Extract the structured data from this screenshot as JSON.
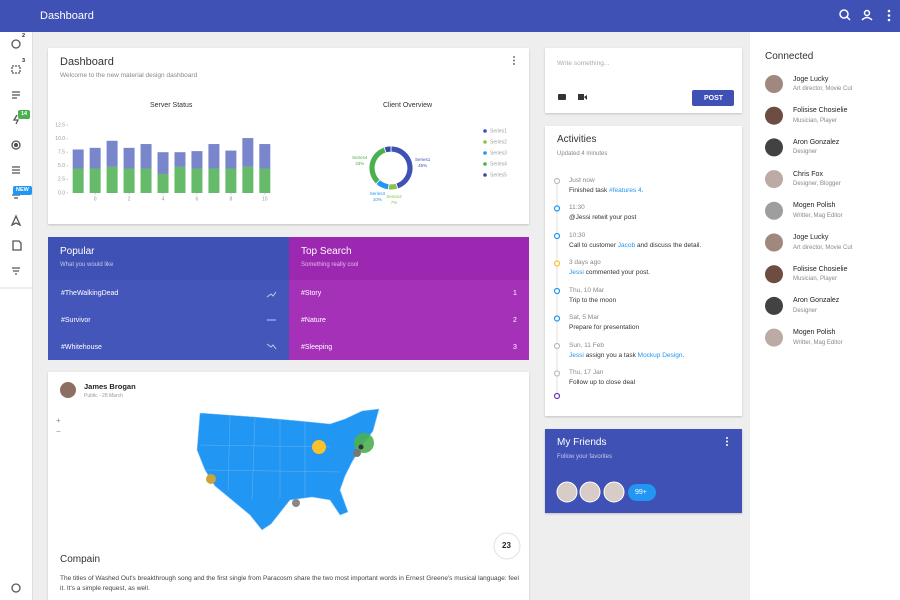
{
  "topbar": {
    "title": "Dashboard"
  },
  "sidebar": {
    "badges": [
      "2",
      "3",
      "14",
      "NEW"
    ]
  },
  "dashboard_card": {
    "title": "Dashboard",
    "subtitle": "Welcome to the new material design dashboard",
    "server_status": {
      "type": "bar",
      "title": "Server Status",
      "x": [
        -1,
        0,
        1,
        2,
        3,
        4,
        5,
        6,
        7,
        8,
        9,
        10
      ],
      "series": [
        {
          "color": "#66bb6a",
          "values": [
            4.5,
            4.5,
            4.8,
            4.5,
            4.5,
            3.5,
            4.8,
            4.5,
            4.5,
            4.5,
            4.8,
            4.5
          ]
        },
        {
          "color": "#7986cb",
          "values": [
            3.5,
            3.8,
            4.8,
            3.8,
            4.5,
            4.0,
            2.7,
            3.2,
            4.5,
            3.3,
            5.3,
            4.5
          ]
        }
      ],
      "stacked": true,
      "xlim": [
        -1.6,
        10.6
      ],
      "ylim": [
        0,
        12.5
      ],
      "xticks": [
        0,
        2,
        4,
        6,
        8,
        10
      ],
      "yticks": [
        {
          "value": 0,
          "label": "0.0"
        },
        2.5,
        {
          "value": 5,
          "label": "5.0"
        },
        7.5,
        {
          "value": 10,
          "label": "10.0"
        },
        12.5
      ]
    },
    "client_overview": {
      "type": "donut",
      "title": "Client Overview",
      "categories": [
        "Series1",
        "Series2",
        "Series3",
        "Series4",
        "Series5"
      ],
      "values": [
        45,
        7,
        10,
        33,
        5
      ],
      "value_labels": [
        "45%",
        "7%",
        "10%",
        "33%",
        null
      ],
      "colors": [
        "#3f51b5",
        "#8bc34a",
        "#2196f3",
        "#4caf50",
        "#3949ab"
      ]
    }
  },
  "popular": {
    "title": "Popular",
    "subtitle": "What you would like",
    "rows": [
      {
        "tag": "#TheWalkingDead",
        "trend": "up"
      },
      {
        "tag": "#Survivor",
        "trend": "flat"
      },
      {
        "tag": "#Whitehouse",
        "trend": "down"
      }
    ]
  },
  "top_search": {
    "title": "Top Search",
    "subtitle": "Something really cool",
    "rows": [
      {
        "tag": "#Story",
        "rank": "1"
      },
      {
        "tag": "#Nature",
        "rank": "2"
      },
      {
        "tag": "#Sleeping",
        "rank": "3"
      }
    ]
  },
  "map_card": {
    "author": "James Brogan",
    "meta": "Public - 28 March",
    "zoom": [
      "+",
      "−"
    ],
    "badge": "23",
    "title": "Compain",
    "text": "The titles of Washed Out's breakthrough song and the first single from Paracosm share the two most important words in Ernest Greene's musical language: feel it. It's a simple request, as well."
  },
  "post_card": {
    "placeholder": "Write something...",
    "button": "POST"
  },
  "activities": {
    "title": "Activities",
    "subtitle": "Updated 4 minutes",
    "items": [
      {
        "time": "Just now",
        "dot": "#bdbdbd",
        "parts": [
          {
            "text": "Finished task "
          },
          {
            "text": "#features 4",
            "link": true
          },
          {
            "text": "."
          }
        ]
      },
      {
        "time": "11:30",
        "dot": "#2196f3",
        "parts": [
          {
            "text": "@Jessi retwit your post"
          }
        ]
      },
      {
        "time": "10:30",
        "dot": "#2196f3",
        "parts": [
          {
            "text": "Call to customer "
          },
          {
            "text": "Jacob",
            "link": true
          },
          {
            "text": " and discuss the detail."
          }
        ]
      },
      {
        "time": "3 days ago",
        "dot": "#fbc02d",
        "parts": [
          {
            "text": "Jessi",
            "link": true
          },
          {
            "text": " commented your post."
          }
        ]
      },
      {
        "time": "Thu, 10 Mar",
        "dot": "#2196f3",
        "parts": [
          {
            "text": "Trip to the moon"
          }
        ]
      },
      {
        "time": "Sat, 5 Mar",
        "dot": "#2196f3",
        "parts": [
          {
            "text": "Prepare for presentation"
          }
        ]
      },
      {
        "time": "Sun, 11 Feb",
        "dot": "#bdbdbd",
        "parts": [
          {
            "text": "Jessi",
            "link": true
          },
          {
            "text": " assign you a task "
          },
          {
            "text": "Mockup Design",
            "link": true
          },
          {
            "text": "."
          }
        ]
      },
      {
        "time": "Thu, 17 Jan",
        "dot": "#bdbdbd",
        "parts": [
          {
            "text": "Follow up to close deal"
          }
        ]
      }
    ]
  },
  "friends": {
    "title": "My Friends",
    "subtitle": "Follow your favorites",
    "more": "99+"
  },
  "connected": {
    "title": "Connected",
    "people": [
      {
        "name": "Joge Lucky",
        "role": "Art director, Movie Cut"
      },
      {
        "name": "Folisise Chosielie",
        "role": "Musician, Player"
      },
      {
        "name": "Aron Gonzalez",
        "role": "Designer"
      },
      {
        "name": "Chris Fox",
        "role": "Designer, Blogger"
      },
      {
        "name": "Mogen Polish",
        "role": "Writter, Mag Editor"
      },
      {
        "name": "Joge Lucky",
        "role": "Art director, Movie Cut"
      },
      {
        "name": "Folisise Chosielie",
        "role": "Musician, Player"
      },
      {
        "name": "Aron Gonzalez",
        "role": "Designer"
      },
      {
        "name": "Mogen Polish",
        "role": "Writter, Mag Editor"
      }
    ]
  }
}
